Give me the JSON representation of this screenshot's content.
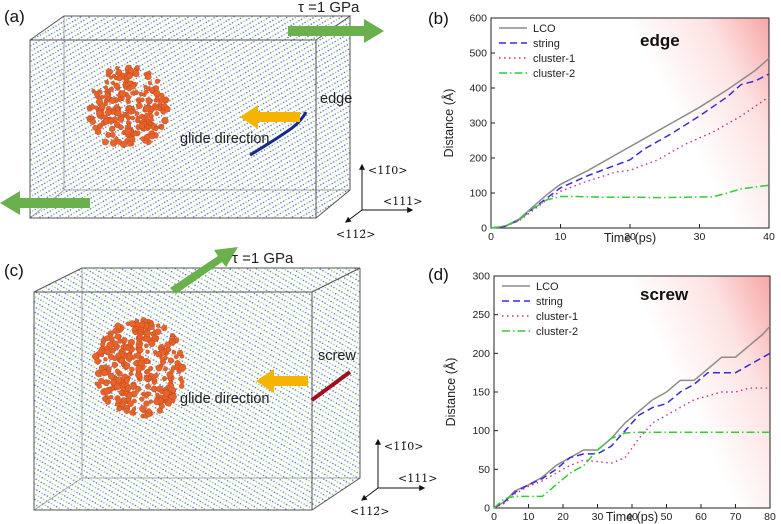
{
  "colors": {
    "LCO": "#8c8c8c",
    "string": "#3a2bd6",
    "cluster-1": "#cc2c8c",
    "cluster-2": "#33cc33",
    "arrow_green": "#6ab04c",
    "arrow_orange": "#f4b400",
    "cluster_orange": "#e8642a",
    "atoms_blue": "#3a4fb0",
    "atoms_green": "#5fc35f",
    "edge_dislocation": "#1a2a8a",
    "screw_dislocation": "#a01020"
  },
  "panels": {
    "a": {
      "label": "(a)",
      "tau": "τ =1 GPa",
      "dislocation": "edge",
      "glide": "glide direction",
      "dirs": {
        "up": "<11̄0>",
        "right": "<111>",
        "down": "<112̄>"
      },
      "icons": [
        "shear-arrow-icon",
        "glide-arrow-icon",
        "atom-cluster-icon"
      ]
    },
    "c": {
      "label": "(c)",
      "tau": "τ =1 GPa",
      "dislocation": "screw",
      "glide": "glide direction",
      "dirs": {
        "up": "<11̄0>",
        "right": "<111>",
        "down": "<112̄>"
      }
    }
  },
  "chart_data": [
    {
      "panel_label": "(b)",
      "type": "line",
      "title": "edge",
      "xlabel": "Time (ps)",
      "ylabel": "Distance (Å)",
      "xlim": [
        0,
        40
      ],
      "ylim": [
        0,
        600
      ],
      "xticks": [
        0,
        10,
        20,
        30,
        40
      ],
      "yticks": [
        0,
        100,
        200,
        300,
        400,
        500,
        600
      ],
      "legend": "top-left",
      "grid": false,
      "series": [
        {
          "name": "LCO",
          "style": "solid",
          "x": [
            0,
            2,
            4,
            6,
            8,
            10,
            14,
            18,
            22,
            26,
            30,
            34,
            38,
            40
          ],
          "y": [
            0,
            5,
            25,
            60,
            95,
            125,
            165,
            210,
            255,
            300,
            345,
            395,
            450,
            485
          ]
        },
        {
          "name": "string",
          "style": "dashed",
          "x": [
            0,
            2,
            4,
            6,
            8,
            10,
            14,
            18,
            20,
            22,
            26,
            30,
            34,
            36,
            38,
            40
          ],
          "y": [
            0,
            5,
            22,
            55,
            85,
            115,
            150,
            180,
            195,
            225,
            270,
            320,
            375,
            410,
            420,
            440
          ]
        },
        {
          "name": "cluster-1",
          "style": "dotted",
          "x": [
            0,
            2,
            4,
            6,
            8,
            10,
            14,
            18,
            20,
            24,
            28,
            32,
            36,
            40
          ],
          "y": [
            0,
            5,
            20,
            50,
            80,
            105,
            135,
            160,
            165,
            195,
            240,
            275,
            320,
            375
          ]
        },
        {
          "name": "cluster-2",
          "style": "dashdot",
          "x": [
            0,
            2,
            4,
            6,
            8,
            10,
            12,
            16,
            20,
            24,
            28,
            32,
            34,
            36,
            40
          ],
          "y": [
            0,
            5,
            22,
            55,
            80,
            90,
            90,
            88,
            88,
            87,
            88,
            89,
            100,
            112,
            122
          ]
        }
      ]
    },
    {
      "panel_label": "(d)",
      "type": "line",
      "title": "screw",
      "xlabel": "Time (ps)",
      "ylabel": "Distance (Å)",
      "xlim": [
        0,
        80
      ],
      "ylim": [
        0,
        300
      ],
      "xticks": [
        0,
        10,
        20,
        30,
        40,
        50,
        60,
        70,
        80
      ],
      "yticks": [
        0,
        50,
        100,
        150,
        200,
        250,
        300
      ],
      "legend": "top-left",
      "grid": false,
      "series": [
        {
          "name": "LCO",
          "style": "solid",
          "x": [
            0,
            3,
            6,
            10,
            14,
            18,
            22,
            26,
            30,
            34,
            38,
            42,
            46,
            50,
            54,
            58,
            62,
            66,
            70,
            74,
            78,
            80
          ],
          "y": [
            0,
            8,
            22,
            30,
            40,
            55,
            65,
            75,
            75,
            90,
            110,
            125,
            140,
            150,
            165,
            165,
            180,
            195,
            195,
            210,
            225,
            235
          ]
        },
        {
          "name": "string",
          "style": "dashed",
          "x": [
            0,
            3,
            6,
            10,
            14,
            18,
            22,
            26,
            30,
            34,
            38,
            42,
            46,
            50,
            54,
            58,
            62,
            66,
            70,
            74,
            78,
            80
          ],
          "y": [
            0,
            8,
            20,
            30,
            38,
            50,
            65,
            70,
            70,
            80,
            100,
            120,
            130,
            135,
            150,
            160,
            175,
            175,
            175,
            185,
            195,
            200
          ]
        },
        {
          "name": "cluster-1",
          "style": "dotted",
          "x": [
            0,
            3,
            6,
            10,
            14,
            18,
            22,
            26,
            30,
            34,
            38,
            42,
            46,
            50,
            54,
            58,
            62,
            66,
            70,
            74,
            78,
            80
          ],
          "y": [
            0,
            6,
            18,
            28,
            35,
            45,
            55,
            62,
            60,
            58,
            65,
            90,
            110,
            120,
            130,
            140,
            145,
            150,
            150,
            155,
            155,
            155
          ]
        },
        {
          "name": "cluster-2",
          "style": "dashdot",
          "x": [
            0,
            3,
            6,
            10,
            14,
            18,
            22,
            26,
            30,
            34,
            38,
            42,
            50,
            60,
            70,
            80
          ],
          "y": [
            0,
            12,
            15,
            15,
            15,
            30,
            45,
            55,
            75,
            90,
            97,
            98,
            98,
            98,
            98,
            98
          ]
        }
      ]
    }
  ]
}
